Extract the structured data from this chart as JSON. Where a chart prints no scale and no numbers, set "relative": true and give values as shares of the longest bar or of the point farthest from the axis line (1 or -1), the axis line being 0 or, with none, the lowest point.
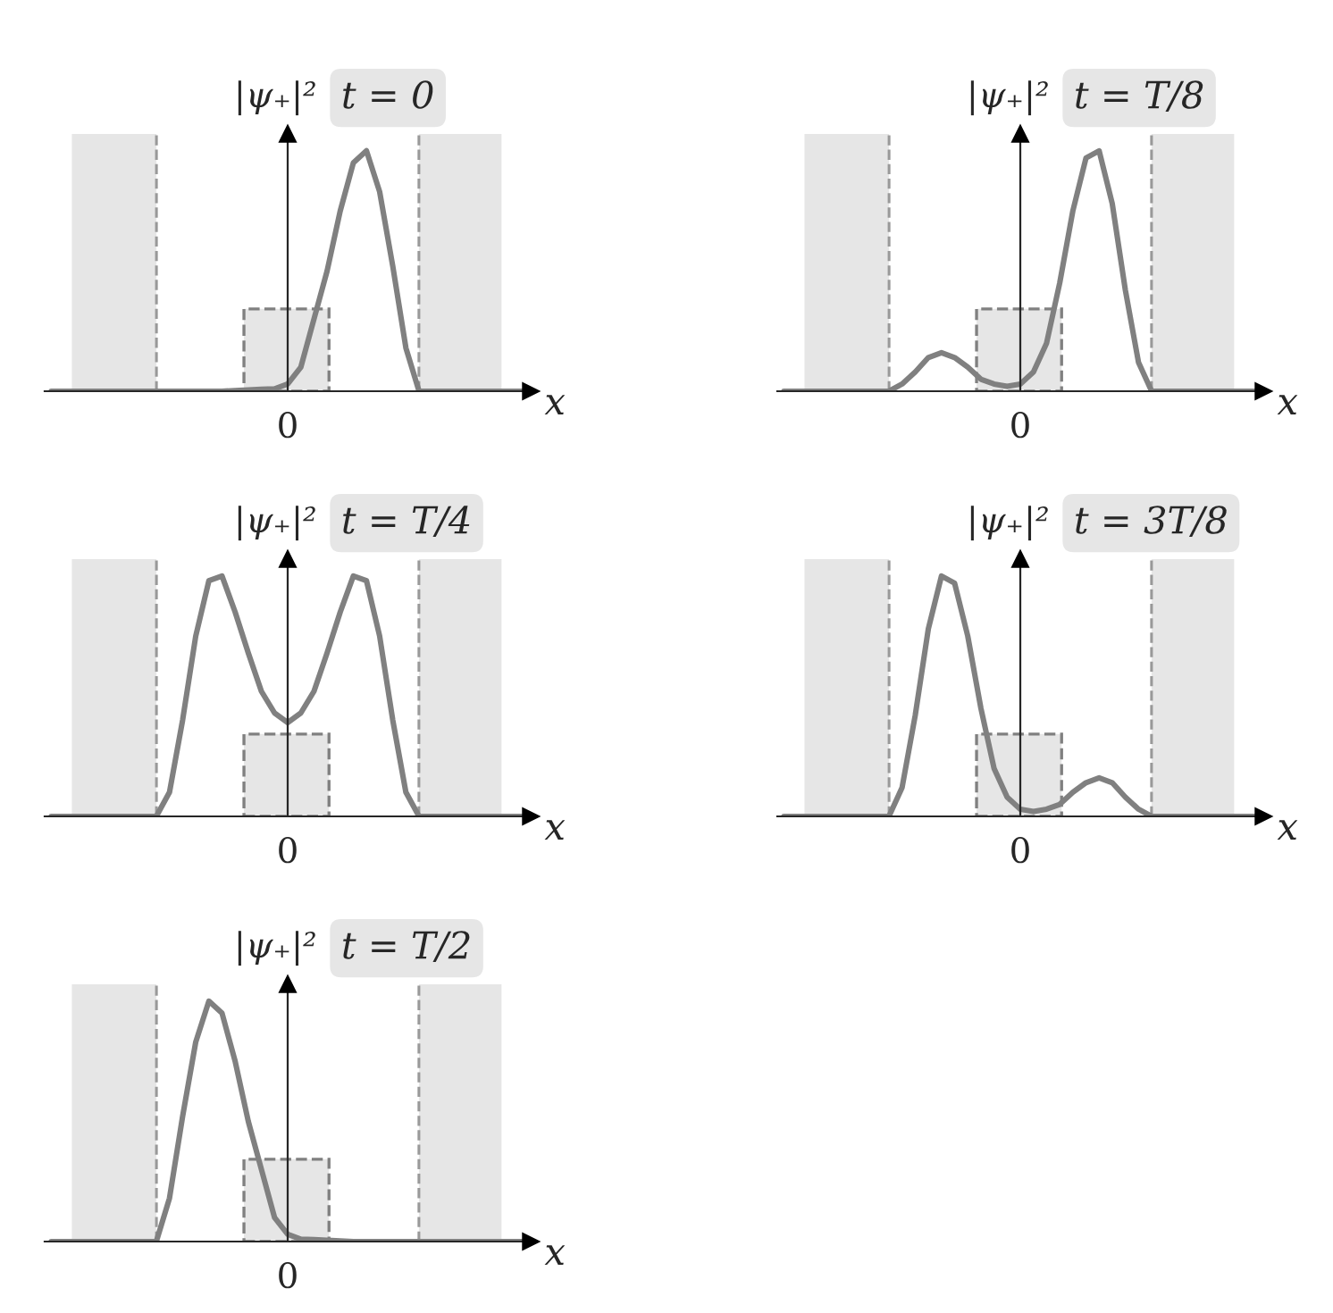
{
  "chart_data": [
    {
      "type": "line",
      "relative": true,
      "title": "t = 0",
      "ylabel": "|ψ₊|²",
      "xlabel": "x",
      "annotations": [
        "0"
      ],
      "legend": false,
      "marker": "none",
      "line_style": "solid",
      "categories": [
        null,
        null,
        null,
        null,
        null,
        null,
        null,
        null,
        null,
        null,
        null,
        null,
        null,
        null,
        null,
        null,
        null,
        null,
        null,
        null,
        null,
        null,
        null,
        null,
        null,
        null,
        null,
        null,
        null,
        null,
        null,
        null,
        null,
        null,
        null,
        null,
        null
      ],
      "series": [
        {
          "color": "#808080",
          "values": [
            0,
            0,
            0,
            0,
            0,
            0,
            0,
            0,
            0,
            0,
            0,
            0,
            0,
            0,
            0.003,
            0.005,
            0.008,
            0.01,
            0.03,
            0.1,
            0.3,
            0.5,
            0.75,
            0.95,
            1.0,
            0.83,
            0.52,
            0.18,
            0,
            0,
            0,
            0,
            0,
            0,
            0,
            0,
            0
          ]
        }
      ]
    },
    {
      "type": "line",
      "relative": true,
      "title": "t = T/8",
      "ylabel": "|ψ₊|²",
      "xlabel": "x",
      "annotations": [
        "0"
      ],
      "legend": false,
      "marker": "none",
      "line_style": "solid",
      "categories": [
        null,
        null,
        null,
        null,
        null,
        null,
        null,
        null,
        null,
        null,
        null,
        null,
        null,
        null,
        null,
        null,
        null,
        null,
        null,
        null,
        null,
        null,
        null,
        null,
        null,
        null,
        null,
        null,
        null,
        null,
        null,
        null,
        null,
        null,
        null,
        null,
        null
      ],
      "series": [
        {
          "color": "#808080",
          "values": [
            0,
            0,
            0,
            0,
            0,
            0,
            0,
            0,
            0,
            0.03,
            0.08,
            0.14,
            0.16,
            0.14,
            0.1,
            0.05,
            0.03,
            0.02,
            0.03,
            0.08,
            0.2,
            0.45,
            0.75,
            0.97,
            1.0,
            0.78,
            0.42,
            0.12,
            0,
            0,
            0,
            0,
            0,
            0,
            0,
            0,
            0
          ]
        }
      ]
    },
    {
      "type": "line",
      "relative": true,
      "title": "t = T/4",
      "ylabel": "|ψ₊|²",
      "xlabel": "x",
      "annotations": [
        "0"
      ],
      "legend": false,
      "marker": "none",
      "line_style": "solid",
      "categories": [
        null,
        null,
        null,
        null,
        null,
        null,
        null,
        null,
        null,
        null,
        null,
        null,
        null,
        null,
        null,
        null,
        null,
        null,
        null,
        null,
        null,
        null,
        null,
        null,
        null,
        null,
        null,
        null,
        null,
        null,
        null,
        null,
        null,
        null,
        null,
        null,
        null
      ],
      "series": [
        {
          "color": "#808080",
          "values": [
            0,
            0,
            0,
            0,
            0,
            0,
            0,
            0,
            0,
            0.1,
            0.4,
            0.75,
            0.98,
            1.0,
            0.85,
            0.68,
            0.52,
            0.43,
            0.39,
            0.43,
            0.52,
            0.68,
            0.85,
            1.0,
            0.98,
            0.75,
            0.4,
            0.1,
            0,
            0,
            0,
            0,
            0,
            0,
            0,
            0,
            0
          ]
        }
      ]
    },
    {
      "type": "line",
      "relative": true,
      "title": "t = 3T/8",
      "ylabel": "|ψ₊|²",
      "xlabel": "x",
      "annotations": [
        "0"
      ],
      "legend": false,
      "marker": "none",
      "line_style": "solid",
      "categories": [
        null,
        null,
        null,
        null,
        null,
        null,
        null,
        null,
        null,
        null,
        null,
        null,
        null,
        null,
        null,
        null,
        null,
        null,
        null,
        null,
        null,
        null,
        null,
        null,
        null,
        null,
        null,
        null,
        null,
        null,
        null,
        null,
        null,
        null,
        null,
        null,
        null
      ],
      "series": [
        {
          "color": "#808080",
          "values": [
            0,
            0,
            0,
            0,
            0,
            0,
            0,
            0,
            0,
            0.12,
            0.42,
            0.78,
            1.0,
            0.97,
            0.75,
            0.45,
            0.2,
            0.08,
            0.03,
            0.02,
            0.03,
            0.05,
            0.1,
            0.14,
            0.16,
            0.14,
            0.08,
            0.03,
            0,
            0,
            0,
            0,
            0,
            0,
            0,
            0,
            0
          ]
        }
      ]
    },
    {
      "type": "line",
      "relative": true,
      "title": "t = T/2",
      "ylabel": "|ψ₊|²",
      "xlabel": "x",
      "annotations": [
        "0"
      ],
      "legend": false,
      "marker": "none",
      "line_style": "solid",
      "categories": [
        null,
        null,
        null,
        null,
        null,
        null,
        null,
        null,
        null,
        null,
        null,
        null,
        null,
        null,
        null,
        null,
        null,
        null,
        null,
        null,
        null,
        null,
        null,
        null,
        null,
        null,
        null,
        null,
        null,
        null,
        null,
        null,
        null,
        null,
        null,
        null,
        null
      ],
      "series": [
        {
          "color": "#808080",
          "values": [
            0,
            0,
            0,
            0,
            0,
            0,
            0,
            0,
            0,
            0.18,
            0.52,
            0.83,
            1.0,
            0.95,
            0.75,
            0.5,
            0.3,
            0.1,
            0.03,
            0.01,
            0.008,
            0.005,
            0.003,
            0,
            0,
            0,
            0,
            0,
            0,
            0,
            0,
            0,
            0,
            0,
            0,
            0,
            0
          ]
        }
      ]
    }
  ]
}
